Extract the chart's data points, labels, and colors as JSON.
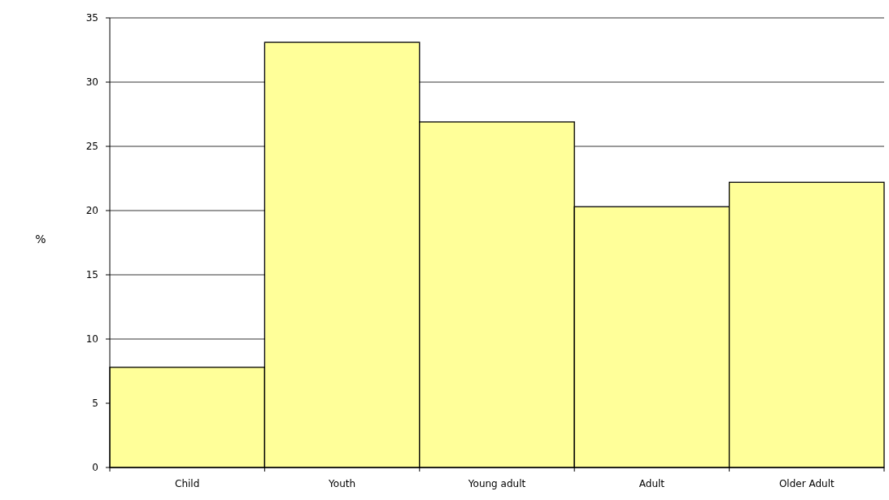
{
  "chart_data": {
    "type": "bar",
    "ylabel": "%",
    "categories": [
      "Child",
      "Youth",
      "Young adult",
      "Adult",
      "Older Adult"
    ],
    "values": [
      7.8,
      33.1,
      26.9,
      20.3,
      22.2
    ],
    "color": "#ffff99",
    "ylim": [
      0,
      35
    ],
    "yticks": [
      0,
      5,
      10,
      15,
      20,
      25,
      30,
      35
    ],
    "grid": "y"
  }
}
